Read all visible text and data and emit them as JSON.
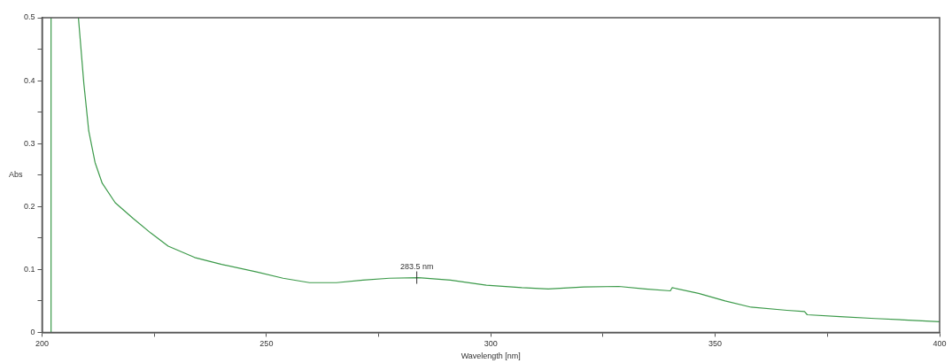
{
  "chart_data": {
    "type": "line",
    "xlabel": "Wavelength [nm]",
    "ylabel": "Abs",
    "series": [
      {
        "color": "#3c9a4a",
        "x": [
          202,
          202
        ],
        "values": [
          0,
          0.5
        ]
      },
      {
        "color": "#3c9a4a",
        "x": [
          208.1,
          209.3,
          210.4,
          211.8,
          213.4,
          216.3,
          220.3,
          224.2,
          228.1,
          234,
          240,
          247.8,
          253.7,
          259.6,
          265.6,
          271.5,
          277.4,
          283.9,
          291,
          299,
          306.9,
          312.8,
          320.7,
          328.5,
          334.4,
          340,
          340.4,
          346.3,
          352.2,
          358,
          366,
          369.9,
          370.5,
          377.8,
          385.6,
          400
        ],
        "values": [
          0.5,
          0.396,
          0.32,
          0.27,
          0.237,
          0.206,
          0.181,
          0.158,
          0.137,
          0.119,
          0.108,
          0.096,
          0.086,
          0.079,
          0.079,
          0.083,
          0.086,
          0.087,
          0.083,
          0.075,
          0.071,
          0.069,
          0.072,
          0.073,
          0.069,
          0.066,
          0.071,
          0.062,
          0.05,
          0.04,
          0.035,
          0.033,
          0.028,
          0.025,
          0.022,
          0.017
        ]
      }
    ],
    "annotations": [
      {
        "text": "283.5 nm",
        "x": 283.5,
        "y": 0.087
      }
    ],
    "xlim": [
      200,
      400
    ],
    "xticks": [
      200,
      {
        "value": 225,
        "label": null
      },
      250,
      {
        "value": 275,
        "label": null
      },
      300,
      {
        "value": 325,
        "label": null
      },
      350,
      {
        "value": 375,
        "label": null
      },
      400
    ],
    "ylim": [
      0,
      0.5
    ],
    "yticks": [
      0,
      {
        "value": 0.05,
        "label": null
      },
      0.1,
      {
        "value": 0.15,
        "label": null
      },
      0.2,
      {
        "value": 0.25,
        "label": null
      },
      0.3,
      {
        "value": 0.35,
        "label": null
      },
      0.4,
      {
        "value": 0.45,
        "label": null
      },
      0.5
    ],
    "grid": false,
    "legend": false,
    "marker": "none",
    "line_style": "solid"
  }
}
